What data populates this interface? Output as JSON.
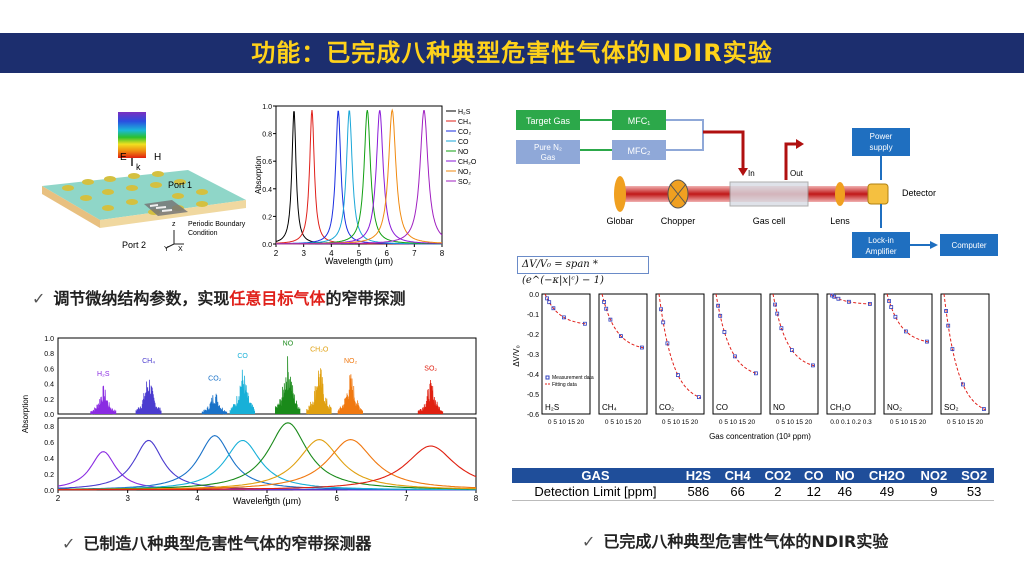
{
  "title": "功能：已完成八种典型危害性气体的NDIR实验",
  "caption_top": {
    "prefix": "调节微纳结构参数，实现",
    "highlight": "任意目标气体",
    "suffix": "的窄带探测"
  },
  "caption_bottom_left": "已制造八种典型危害性气体的窄带探测器",
  "caption_bottom_right": "已完成八种典型危害性气体的NDIR实验",
  "structure_labels": {
    "E": "E",
    "H": "H",
    "k": "k",
    "port1": "Port 1",
    "port2": "Port 2",
    "periodic": "Periodic Boundary",
    "condition": "Condition",
    "z": "z",
    "x": "X",
    "y": "Y"
  },
  "setup": {
    "target_gas": "Target Gas",
    "pure_n2": "Pure N₂",
    "gas": "Gas",
    "mfc1": "MFC₁",
    "mfc2": "MFC₂",
    "power_supply_1": "Power",
    "power_supply_2": "supply",
    "detector": "Detector",
    "lockin_1": "Lock-in",
    "lockin_2": "Amplifier",
    "computer": "Computer",
    "globar": "Globar",
    "chopper": "Chopper",
    "gas_cell": "Gas cell",
    "lens": "Lens",
    "in": "In",
    "out": "Out"
  },
  "equation": "ΔV/V₀ = span * (e^(−κ|x|ᶜ) − 1)",
  "chart_data": [
    {
      "type": "line",
      "title": "",
      "xlabel": "Wavelength (μm)",
      "ylabel": "Absorption",
      "xlim": [
        2,
        8
      ],
      "ylim": [
        0,
        1.0
      ],
      "xticks": [
        "2",
        "3",
        "4",
        "5",
        "6",
        "7",
        "8"
      ],
      "yticks": [
        "0.0",
        "0.2",
        "0.4",
        "0.6",
        "0.8",
        "1.0"
      ],
      "series": [
        {
          "name": "H₂S",
          "peak": 2.65,
          "color": "#000000"
        },
        {
          "name": "CH₄",
          "peak": 3.3,
          "color": "#e0201a"
        },
        {
          "name": "CO₂",
          "peak": 4.25,
          "color": "#1a2ee0"
        },
        {
          "name": "CO",
          "peak": 4.65,
          "color": "#1aa7d8"
        },
        {
          "name": "NO",
          "peak": 5.3,
          "color": "#12a012"
        },
        {
          "name": "CH₂O",
          "peak": 5.75,
          "color": "#8a1ad8"
        },
        {
          "name": "NO₂",
          "peak": 6.2,
          "color": "#f08a10"
        },
        {
          "name": "SO₂",
          "peak": 7.35,
          "color": "#a020c0"
        }
      ]
    },
    {
      "type": "line",
      "title": "",
      "xlabel": "Wavelength (μm)",
      "ylabel": "Absorption",
      "xlim": [
        2,
        8
      ],
      "xticks": [
        "2",
        "3",
        "4",
        "5",
        "6",
        "7",
        "8"
      ],
      "yticks_top": [
        "0.0",
        "0.2",
        "0.4",
        "0.6",
        "0.8",
        "1.0"
      ],
      "yticks_bottom": [
        "0.0",
        "0.2",
        "0.4",
        "0.6",
        "0.8"
      ],
      "gas_labels": [
        {
          "name": "H₂S",
          "peak": 2.65,
          "color": "#8a2be2"
        },
        {
          "name": "CH₄",
          "peak": 3.3,
          "color": "#4b3ccf"
        },
        {
          "name": "CO₂",
          "peak": 4.25,
          "color": "#1a72c8"
        },
        {
          "name": "CO",
          "peak": 4.65,
          "color": "#18b0d8"
        },
        {
          "name": "NO",
          "peak": 5.3,
          "color": "#1a8a1a"
        },
        {
          "name": "CH₂O",
          "peak": 5.75,
          "color": "#e0a010"
        },
        {
          "name": "NO₂",
          "peak": 6.2,
          "color": "#f07810"
        },
        {
          "name": "SO₂",
          "peak": 7.35,
          "color": "#e02010"
        }
      ]
    },
    {
      "type": "scatter",
      "title": "",
      "xlabel": "Gas concentration (10³ ppm)",
      "ylabel": "ΔV/V₀",
      "ylim": [
        -0.6,
        0.0
      ],
      "yticks": [
        "0.0",
        "-0.1",
        "-0.2",
        "-0.3",
        "-0.4",
        "-0.5",
        "-0.6"
      ],
      "legend": [
        "Measurement data",
        "Fitting data"
      ],
      "panels": [
        {
          "name": "H₂S",
          "xticks": "0 5 10 15 20",
          "end": -0.15
        },
        {
          "name": "CH₄",
          "xticks": "0 5 10 15 20",
          "end": -0.27
        },
        {
          "name": "CO₂",
          "xticks": "0 5 10 15 20",
          "end": -0.52
        },
        {
          "name": "CO",
          "xticks": "0 5 10 15 20",
          "end": -0.4
        },
        {
          "name": "NO",
          "xticks": "0 5 10 15 20",
          "end": -0.36
        },
        {
          "name": "CH₂O",
          "xticks": "0.0 0.1 0.2 0.3",
          "end": -0.05
        },
        {
          "name": "NO₂",
          "xticks": "0 5 10 15 20",
          "end": -0.24
        },
        {
          "name": "SO₂",
          "xticks": "0 5 10 15 20",
          "end": -0.58
        }
      ]
    },
    {
      "type": "table",
      "headers": [
        "GAS",
        "H2S",
        "CH4",
        "CO2",
        "CO",
        "NO",
        "CH2O",
        "NO2",
        "SO2"
      ],
      "rows": [
        [
          "Detection Limit [ppm]",
          "586",
          "66",
          "2",
          "12",
          "46",
          "49",
          "9",
          "53"
        ]
      ]
    }
  ]
}
